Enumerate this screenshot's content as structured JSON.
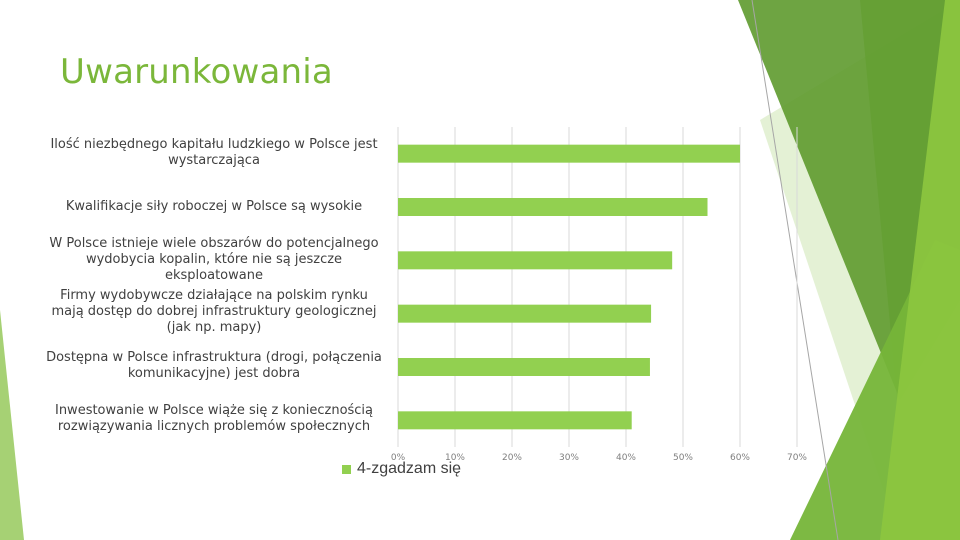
{
  "slide": {
    "title": "Uwarunkowania"
  },
  "colors": {
    "title": "#7bb73a",
    "bar": "#92d050",
    "grid": "#d9d9d9",
    "tick": "#7f7f7f",
    "text": "#404040",
    "deco_dark": "#4e8a22",
    "deco_mid": "#76b539",
    "deco_light": "#9ccc65",
    "deco_pale": "#d8ebc3"
  },
  "chart_data": {
    "type": "bar",
    "orientation": "horizontal",
    "categories": [
      "Ilość niezbędnego kapitału ludzkiego w Polsce jest wystarczająca",
      "Kwalifikacje siły roboczej w Polsce są wysokie",
      "W Polsce istnieje wiele obszarów do potencjalnego wydobycia kopalin, które nie są jeszcze eksploatowane",
      "Firmy wydobywcze działające na polskim rynku mają dostęp do dobrej infrastruktury geologicznej (jak np. mapy)",
      "Dostępna w Polsce infrastruktura (drogi, połączenia komunikacyjne) jest dobra",
      "Inwestowanie w Polsce wiąże się z koniecznością rozwiązywania licznych problemów społecznych"
    ],
    "series": [
      {
        "name": "4-zgadzam się",
        "values": [
          60,
          54.3,
          48.1,
          44.4,
          44.2,
          41
        ]
      }
    ],
    "xlim": [
      0,
      70
    ],
    "xticks": [
      "0%",
      "10%",
      "20%",
      "30%",
      "40%",
      "50%",
      "60%",
      "70%"
    ],
    "legend": "bottom-left",
    "grid": true
  }
}
